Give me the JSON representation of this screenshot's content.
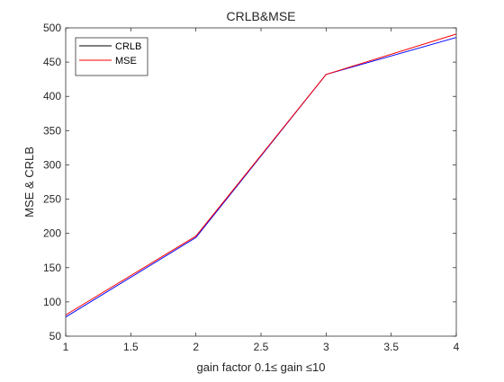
{
  "chart_data": {
    "type": "line",
    "title": "CRLB&MSE",
    "xlabel": "gain factor 0.1≤ gain ≤10",
    "ylabel": "MSE & CRLB",
    "xlim": [
      1,
      4
    ],
    "ylim": [
      50,
      500
    ],
    "xticks": [
      "1",
      "1.5",
      "2",
      "2.5",
      "3",
      "3.5",
      "4"
    ],
    "yticks": [
      "50",
      "100",
      "150",
      "200",
      "250",
      "300",
      "350",
      "400",
      "450",
      "500"
    ],
    "x": [
      1,
      2,
      3,
      4
    ],
    "series": [
      {
        "name": "CRLB",
        "values": [
          78,
          194,
          432,
          486
        ],
        "color": "#0000ff",
        "legend_color": "#000000"
      },
      {
        "name": "MSE",
        "values": [
          81,
          196,
          432,
          491
        ],
        "color": "#ff0000",
        "legend_color": "#ff0000"
      }
    ],
    "legend_position": "top-left",
    "grid": false
  }
}
